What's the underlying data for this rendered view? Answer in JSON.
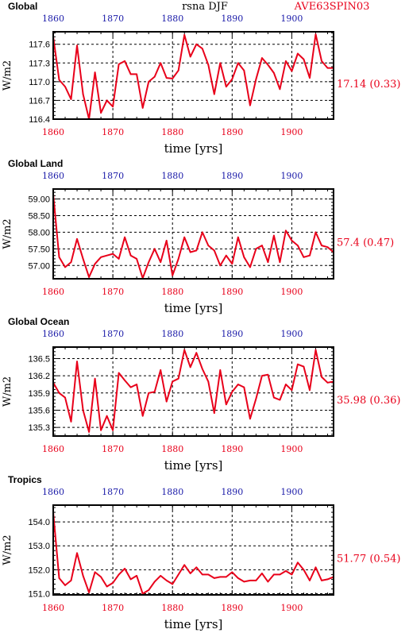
{
  "header": {
    "variable": "rsna DJF",
    "run_id": "AVE63SPIN03"
  },
  "colors": {
    "series": "#e8001a",
    "top_ticks": "#1a1aa8",
    "bottom_ticks": "#e8001a",
    "frame": "#000000",
    "grid": "#000000"
  },
  "chart_data": [
    {
      "type": "line",
      "title": "Global",
      "ylabel": "W/m2",
      "xlabel": "time [yrs]",
      "stat_text": "17.14 (0.33)",
      "xlim": [
        1860,
        1907
      ],
      "ylim": [
        116.4,
        117.8
      ],
      "y_ticks": [
        "116.4",
        "116.7",
        "117.0",
        "117.3",
        "117.6"
      ],
      "x_ticks": [
        "1860",
        "1870",
        "1880",
        "1890",
        "1900"
      ],
      "grid": true,
      "x": [
        1860,
        1861,
        1862,
        1863,
        1864,
        1865,
        1866,
        1867,
        1868,
        1869,
        1870,
        1871,
        1872,
        1873,
        1874,
        1875,
        1876,
        1877,
        1878,
        1879,
        1880,
        1881,
        1882,
        1883,
        1884,
        1885,
        1886,
        1887,
        1888,
        1889,
        1890,
        1891,
        1892,
        1893,
        1894,
        1895,
        1896,
        1897,
        1898,
        1899,
        1900,
        1901,
        1902,
        1903,
        1904,
        1905,
        1906,
        1907
      ],
      "values": [
        117.72,
        117.03,
        116.92,
        116.72,
        117.58,
        116.8,
        116.4,
        117.15,
        116.5,
        116.7,
        116.6,
        117.28,
        117.33,
        117.12,
        117.12,
        116.58,
        117.0,
        117.08,
        117.3,
        117.06,
        117.05,
        117.18,
        117.75,
        117.4,
        117.6,
        117.53,
        117.27,
        116.8,
        117.3,
        116.92,
        117.04,
        117.3,
        117.18,
        116.62,
        117.04,
        117.38,
        117.27,
        117.14,
        116.88,
        117.33,
        117.17,
        117.45,
        117.36,
        117.06,
        117.76,
        117.33,
        117.22,
        117.22
      ]
    },
    {
      "type": "line",
      "title": "Global Land",
      "ylabel": "W/m2",
      "xlabel": "time [yrs]",
      "stat_text": "57.4 (0.47)",
      "xlim": [
        1860,
        1907
      ],
      "ylim": [
        56.6,
        59.3
      ],
      "y_ticks": [
        "57.00",
        "57.50",
        "58.00",
        "58.50",
        "59.00"
      ],
      "x_ticks": [
        "1860",
        "1870",
        "1880",
        "1890",
        "1900"
      ],
      "grid": true,
      "x": [
        1860,
        1861,
        1862,
        1863,
        1864,
        1865,
        1866,
        1867,
        1868,
        1869,
        1870,
        1871,
        1872,
        1873,
        1874,
        1875,
        1876,
        1877,
        1878,
        1879,
        1880,
        1881,
        1882,
        1883,
        1884,
        1885,
        1886,
        1887,
        1888,
        1889,
        1890,
        1891,
        1892,
        1893,
        1894,
        1895,
        1896,
        1897,
        1898,
        1899,
        1900,
        1901,
        1902,
        1903,
        1904,
        1905,
        1906,
        1907
      ],
      "values": [
        59.15,
        57.25,
        56.95,
        57.1,
        57.8,
        57.2,
        56.65,
        57.05,
        57.25,
        57.3,
        57.35,
        57.2,
        57.85,
        57.3,
        57.2,
        56.62,
        57.1,
        57.5,
        57.1,
        57.75,
        56.7,
        57.2,
        57.85,
        57.4,
        57.45,
        58.0,
        57.6,
        57.45,
        57.0,
        57.3,
        57.05,
        57.85,
        57.25,
        56.95,
        57.5,
        57.6,
        57.1,
        57.9,
        57.1,
        58.05,
        57.75,
        57.6,
        57.25,
        57.3,
        58.0,
        57.6,
        57.55,
        57.4
      ]
    },
    {
      "type": "line",
      "title": "Global Ocean",
      "ylabel": "W/m2",
      "xlabel": "time [yrs]",
      "stat_text": "35.98 (0.36)",
      "xlim": [
        1860,
        1907
      ],
      "ylim": [
        135.15,
        136.7
      ],
      "y_ticks": [
        "135.3",
        "135.6",
        "135.9",
        "136.2",
        "136.5"
      ],
      "x_ticks": [
        "1860",
        "1870",
        "1880",
        "1890",
        "1900"
      ],
      "grid": true,
      "x": [
        1860,
        1861,
        1862,
        1863,
        1864,
        1865,
        1866,
        1867,
        1868,
        1869,
        1870,
        1871,
        1872,
        1873,
        1874,
        1875,
        1876,
        1877,
        1878,
        1879,
        1880,
        1881,
        1882,
        1883,
        1884,
        1885,
        1886,
        1887,
        1888,
        1889,
        1890,
        1891,
        1892,
        1893,
        1894,
        1895,
        1896,
        1897,
        1898,
        1899,
        1900,
        1901,
        1902,
        1903,
        1904,
        1905,
        1906,
        1907
      ],
      "values": [
        136.08,
        135.9,
        135.82,
        135.4,
        136.45,
        135.6,
        135.22,
        136.15,
        135.25,
        135.5,
        135.25,
        136.25,
        136.12,
        136.0,
        136.05,
        135.5,
        135.9,
        135.92,
        136.3,
        135.75,
        136.1,
        136.15,
        136.65,
        136.35,
        136.6,
        136.32,
        136.1,
        135.55,
        136.3,
        135.7,
        135.92,
        136.05,
        136.0,
        135.45,
        135.8,
        136.2,
        136.22,
        135.82,
        135.78,
        136.05,
        135.95,
        136.4,
        136.36,
        135.95,
        136.65,
        136.18,
        136.08,
        136.1
      ]
    },
    {
      "type": "line",
      "title": "Tropics",
      "ylabel": "W/m2",
      "xlabel": "time [yrs]",
      "stat_text": "51.77 (0.54)",
      "xlim": [
        1860,
        1907
      ],
      "ylim": [
        150.95,
        154.7
      ],
      "y_ticks": [
        "151.0",
        "152.0",
        "153.0",
        "154.0"
      ],
      "x_ticks": [
        "1860",
        "1870",
        "1880",
        "1890",
        "1900"
      ],
      "grid": true,
      "x": [
        1860,
        1861,
        1862,
        1863,
        1864,
        1865,
        1866,
        1867,
        1868,
        1869,
        1870,
        1871,
        1872,
        1873,
        1874,
        1875,
        1876,
        1877,
        1878,
        1879,
        1880,
        1881,
        1882,
        1883,
        1884,
        1885,
        1886,
        1887,
        1888,
        1889,
        1890,
        1891,
        1892,
        1893,
        1894,
        1895,
        1896,
        1897,
        1898,
        1899,
        1900,
        1901,
        1902,
        1903,
        1904,
        1905,
        1906,
        1907
      ],
      "values": [
        154.4,
        151.65,
        151.35,
        151.55,
        152.7,
        151.75,
        151.05,
        151.9,
        151.7,
        151.3,
        151.45,
        151.8,
        152.05,
        151.6,
        151.75,
        151.0,
        151.15,
        151.5,
        151.75,
        151.55,
        151.4,
        151.8,
        152.2,
        151.85,
        152.1,
        151.8,
        151.8,
        151.65,
        151.7,
        151.7,
        151.9,
        151.65,
        151.5,
        151.55,
        151.55,
        151.85,
        151.5,
        151.8,
        151.8,
        151.95,
        151.8,
        152.3,
        152.0,
        151.55,
        152.1,
        151.55,
        151.6,
        151.7
      ]
    }
  ]
}
